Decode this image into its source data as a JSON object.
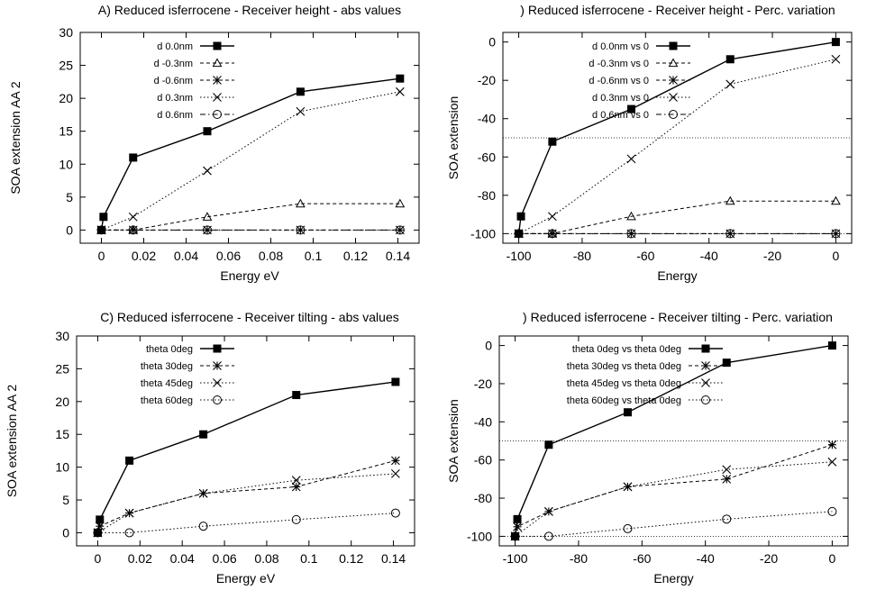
{
  "chart_data": [
    {
      "type": "line",
      "title": "A) Reduced  isferrocene - Receiver height - abs values",
      "xlabel": "Energy  eV",
      "ylabel": "SOA extension  AA 2",
      "xlim": [
        -0.01,
        0.15
      ],
      "ylim": [
        -2,
        30
      ],
      "xticks": [
        0,
        0.02,
        0.04,
        0.06,
        0.08,
        0.1,
        0.12,
        0.14
      ],
      "xtick_labels": [
        "0",
        "0.02",
        "0.04",
        "0.06",
        "0.08",
        "0.1",
        "0.12",
        "0.14"
      ],
      "yticks": [
        0,
        5,
        10,
        15,
        20,
        25,
        30
      ],
      "ytick_labels": [
        "0",
        "5",
        "10",
        "15",
        "20",
        "25",
        "30"
      ],
      "grid": false,
      "legend_position": "top-left",
      "series": [
        {
          "name": "d  0.0nm",
          "marker": "filled-square",
          "line": "solid",
          "x": [
            0,
            0.001,
            0.015,
            0.05,
            0.094,
            0.141
          ],
          "y": [
            0,
            2,
            11,
            15,
            21,
            23
          ]
        },
        {
          "name": "d  -0.3nm",
          "marker": "triangle",
          "line": "dashed",
          "x": [
            0,
            0.015,
            0.05,
            0.094,
            0.141
          ],
          "y": [
            0,
            0,
            2,
            4,
            4
          ]
        },
        {
          "name": "d  -0.6nm",
          "marker": "star",
          "line": "dashed",
          "x": [
            0,
            0.015,
            0.05,
            0.094,
            0.141
          ],
          "y": [
            0,
            0,
            0,
            0,
            0
          ]
        },
        {
          "name": "d  0.3nm",
          "marker": "x",
          "line": "dotted",
          "x": [
            0,
            0.015,
            0.05,
            0.094,
            0.141
          ],
          "y": [
            0,
            2,
            9,
            18,
            21
          ]
        },
        {
          "name": "d  0.6nm",
          "marker": "circle",
          "line": "dashdot",
          "x": [
            0,
            0.015,
            0.05,
            0.094,
            0.141
          ],
          "y": [
            0,
            0,
            0,
            0,
            0
          ]
        }
      ]
    },
    {
      "type": "line",
      "title": ") Reduced  isferrocene - Receiver height - Perc. variation",
      "xlabel": "Energy",
      "ylabel": "SOA extension",
      "xlim": [
        -105,
        5
      ],
      "ylim": [
        -105,
        5
      ],
      "xticks": [
        -100,
        -80,
        -60,
        -40,
        -20,
        0
      ],
      "xtick_labels": [
        "-100",
        "-80",
        "-60",
        "-40",
        "-20",
        "0"
      ],
      "yticks": [
        -100,
        -80,
        -60,
        -40,
        -20,
        0
      ],
      "ytick_labels": [
        "-100",
        "-80",
        "-60",
        "-40",
        "-20",
        "0"
      ],
      "hlines": [
        -50,
        -100
      ],
      "grid": false,
      "legend_position": "top-left",
      "series": [
        {
          "name": "d  0.0nm vs 0",
          "marker": "filled-square",
          "line": "solid",
          "x": [
            -100,
            -99.3,
            -89.4,
            -64.5,
            -33.3,
            0
          ],
          "y": [
            -100,
            -91,
            -52,
            -35,
            -9,
            0
          ]
        },
        {
          "name": "d  -0.3nm vs 0",
          "marker": "triangle",
          "line": "dashed",
          "x": [
            -100,
            -89.4,
            -64.5,
            -33.3,
            0
          ],
          "y": [
            -100,
            -100,
            -91,
            -83,
            -83
          ]
        },
        {
          "name": "d  -0.6nm vs 0",
          "marker": "star",
          "line": "dashed",
          "x": [
            -100,
            -89.4,
            -64.5,
            -33.3,
            0
          ],
          "y": [
            -100,
            -100,
            -100,
            -100,
            -100
          ]
        },
        {
          "name": "d  0.3nm vs 0",
          "marker": "x",
          "line": "dotted",
          "x": [
            -100,
            -89.4,
            -64.5,
            -33.3,
            0
          ],
          "y": [
            -100,
            -91,
            -61,
            -22,
            -9
          ]
        },
        {
          "name": "d  0.6nm vs 0",
          "marker": "circle",
          "line": "dashdot",
          "x": [
            -100,
            -89.4,
            -64.5,
            -33.3,
            0
          ],
          "y": [
            -100,
            -100,
            -100,
            -100,
            -100
          ]
        }
      ]
    },
    {
      "type": "line",
      "title": "C) Reduced  isferrocene - Receiver tilting - abs values",
      "xlabel": "Energy  eV",
      "ylabel": "SOA extension  AA 2",
      "xlim": [
        -0.01,
        0.15
      ],
      "ylim": [
        -2,
        30
      ],
      "xticks": [
        0,
        0.02,
        0.04,
        0.06,
        0.08,
        0.1,
        0.12,
        0.14
      ],
      "xtick_labels": [
        "0",
        "0.02",
        "0.04",
        "0.06",
        "0.08",
        "0.1",
        "0.12",
        "0.14"
      ],
      "yticks": [
        0,
        5,
        10,
        15,
        20,
        25,
        30
      ],
      "ytick_labels": [
        "0",
        "5",
        "10",
        "15",
        "20",
        "25",
        "30"
      ],
      "grid": false,
      "legend_position": "top-left",
      "series": [
        {
          "name": "theta 0deg",
          "marker": "filled-square",
          "line": "solid",
          "x": [
            0,
            0.001,
            0.015,
            0.05,
            0.094,
            0.141
          ],
          "y": [
            0,
            2,
            11,
            15,
            21,
            23
          ]
        },
        {
          "name": "theta 30deg",
          "marker": "star",
          "line": "dashed",
          "x": [
            0,
            0.001,
            0.015,
            0.05,
            0.094,
            0.141
          ],
          "y": [
            0,
            1,
            3,
            6,
            7,
            11
          ]
        },
        {
          "name": "theta 45deg",
          "marker": "x",
          "line": "dotted",
          "x": [
            0,
            0.015,
            0.05,
            0.094,
            0.141
          ],
          "y": [
            0,
            3,
            6,
            8,
            9
          ]
        },
        {
          "name": "theta 60deg",
          "marker": "circle",
          "line": "dotted",
          "x": [
            0,
            0.015,
            0.05,
            0.094,
            0.141
          ],
          "y": [
            0,
            0,
            1,
            2,
            3
          ]
        }
      ]
    },
    {
      "type": "line",
      "title": ") Reduced  isferrocene - Receiver tilting - Perc. variation",
      "xlabel": "Energy",
      "ylabel": "SOA extension",
      "xlim": [
        -105,
        5
      ],
      "ylim": [
        -105,
        5
      ],
      "xticks": [
        -100,
        -80,
        -60,
        -40,
        -20,
        0
      ],
      "xtick_labels": [
        "-100",
        "-80",
        "-60",
        "-40",
        "-20",
        "0"
      ],
      "yticks": [
        -100,
        -80,
        -60,
        -40,
        -20,
        0
      ],
      "ytick_labels": [
        "-100",
        "-80",
        "-60",
        "-40",
        "-20",
        "0"
      ],
      "hlines": [
        -50,
        -100
      ],
      "grid": false,
      "legend_position": "top-left",
      "series": [
        {
          "name": "theta 0deg vs theta 0deg",
          "marker": "filled-square",
          "line": "solid",
          "x": [
            -100,
            -99.3,
            -89.4,
            -64.5,
            -33.3,
            0
          ],
          "y": [
            -100,
            -91,
            -52,
            -35,
            -9,
            0
          ]
        },
        {
          "name": "theta 30deg vs theta 0deg",
          "marker": "star",
          "line": "dashed",
          "x": [
            -100,
            -99.3,
            -89.4,
            -64.5,
            -33.3,
            0
          ],
          "y": [
            -100,
            -95,
            -87,
            -74,
            -70,
            -52
          ]
        },
        {
          "name": "theta 45deg vs theta 0deg",
          "marker": "x",
          "line": "dotted",
          "x": [
            -100,
            -89.4,
            -64.5,
            -33.3,
            0
          ],
          "y": [
            -100,
            -87,
            -74,
            -65,
            -61
          ]
        },
        {
          "name": "theta 60deg vs theta 0deg",
          "marker": "circle",
          "line": "dotted",
          "x": [
            -100,
            -89.4,
            -64.5,
            -33.3,
            0
          ],
          "y": [
            -100,
            -100,
            -96,
            -91,
            -87
          ]
        }
      ]
    }
  ]
}
